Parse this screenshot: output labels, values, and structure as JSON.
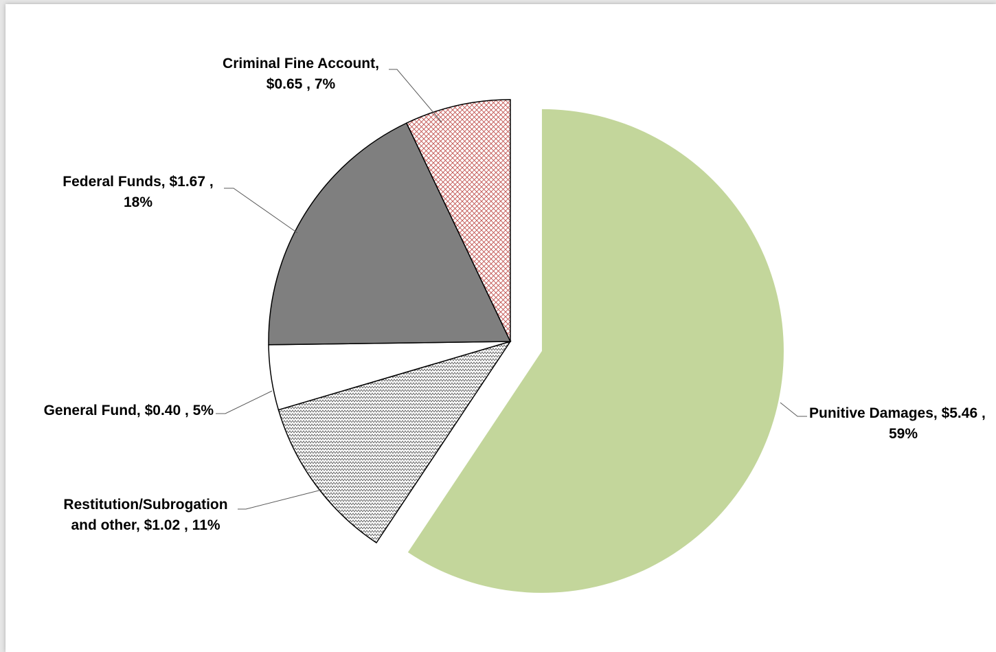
{
  "chart_data": {
    "type": "pie",
    "title": "",
    "slices": [
      {
        "label": "Punitive Damages",
        "value": 5.46,
        "value_text": "$5.46",
        "percent": "59%",
        "color": "#c3d69b",
        "pattern": "solid",
        "exploded": true
      },
      {
        "label": "Restitution/Subrogation and other",
        "value": 1.02,
        "value_text": "$1.02",
        "percent": "11%",
        "color": "#ffffff",
        "pattern": "zigzag",
        "exploded": false
      },
      {
        "label": "General Fund",
        "value": 0.4,
        "value_text": "$0.40",
        "percent": "5%",
        "color": "#ffffff",
        "pattern": "solid",
        "exploded": false
      },
      {
        "label": "Federal Funds",
        "value": 1.67,
        "value_text": "$1.67",
        "percent": "18%",
        "color": "#7f7f7f",
        "pattern": "solid",
        "exploded": false
      },
      {
        "label": "Criminal Fine Account",
        "value": 0.65,
        "value_text": "$0.65",
        "percent": "7%",
        "color": "#c0504d",
        "pattern": "crosshatch",
        "exploded": false
      }
    ],
    "data_labels": [
      {
        "lines": [
          "Criminal Fine Account,",
          "$0.65 , 7%"
        ]
      },
      {
        "lines": [
          "Federal Funds,  $1.67 ,",
          "18%"
        ]
      },
      {
        "lines": [
          "General Fund,  $0.40 , 5%"
        ]
      },
      {
        "lines": [
          "Restitution/Subrogation",
          "and other,  $1.02 , 11%"
        ]
      },
      {
        "lines": [
          "Punitive Damages,  $5.46 ,",
          "59%"
        ]
      }
    ]
  }
}
